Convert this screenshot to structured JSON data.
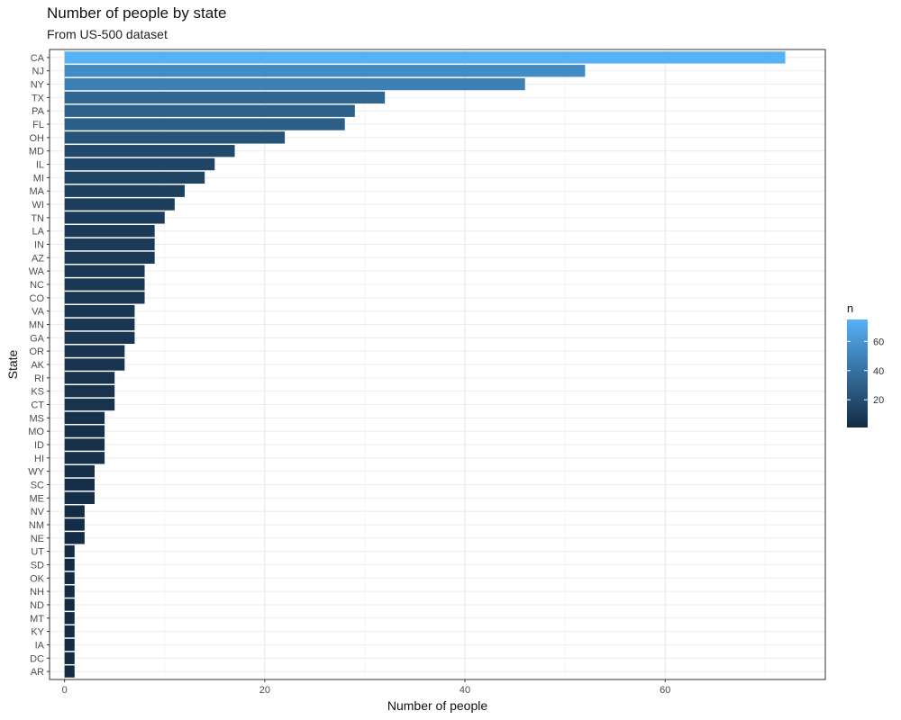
{
  "chart_data": {
    "type": "bar",
    "orientation": "horizontal",
    "title": "Number of people by state",
    "subtitle": "From US-500 dataset",
    "xlabel": "Number of people",
    "ylabel": "State",
    "xlim": [
      -1.5,
      76
    ],
    "xticks": [
      0,
      20,
      40,
      60
    ],
    "grid": true,
    "categories": [
      "CA",
      "NJ",
      "NY",
      "TX",
      "PA",
      "FL",
      "OH",
      "MD",
      "IL",
      "MI",
      "MA",
      "WI",
      "TN",
      "LA",
      "IN",
      "AZ",
      "WA",
      "NC",
      "CO",
      "VA",
      "MN",
      "GA",
      "OR",
      "AK",
      "RI",
      "KS",
      "CT",
      "MS",
      "MO",
      "ID",
      "HI",
      "WY",
      "SC",
      "ME",
      "NV",
      "NM",
      "NE",
      "UT",
      "SD",
      "OK",
      "NH",
      "ND",
      "MT",
      "KY",
      "IA",
      "DC",
      "AR"
    ],
    "values": [
      72,
      52,
      46,
      32,
      29,
      28,
      22,
      17,
      15,
      14,
      12,
      11,
      10,
      9,
      9,
      9,
      8,
      8,
      8,
      7,
      7,
      7,
      6,
      6,
      5,
      5,
      5,
      4,
      4,
      4,
      4,
      3,
      3,
      3,
      2,
      2,
      2,
      1,
      1,
      1,
      1,
      1,
      1,
      1,
      1,
      1,
      1
    ],
    "color_scale": {
      "title": "n",
      "low_color": "#132B43",
      "high_color": "#56B1F7",
      "domain": [
        1,
        72
      ],
      "ticks": [
        20,
        40,
        60
      ]
    }
  }
}
